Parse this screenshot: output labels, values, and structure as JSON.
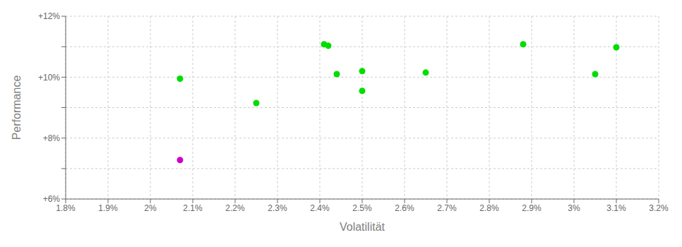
{
  "chart_data": {
    "type": "scatter",
    "xlabel": "Volatilität",
    "ylabel": "Performance",
    "xlim": [
      0.018,
      0.032
    ],
    "ylim": [
      0.06,
      0.12
    ],
    "xticks": [
      {
        "value": 0.018,
        "label": "1.8%"
      },
      {
        "value": 0.019,
        "label": "1.9%"
      },
      {
        "value": 0.02,
        "label": "2%"
      },
      {
        "value": 0.021,
        "label": "2.1%"
      },
      {
        "value": 0.022,
        "label": "2.2%"
      },
      {
        "value": 0.023,
        "label": "2.3%"
      },
      {
        "value": 0.024,
        "label": "2.4%"
      },
      {
        "value": 0.025,
        "label": "2.5%"
      },
      {
        "value": 0.026,
        "label": "2.6%"
      },
      {
        "value": 0.027,
        "label": "2.7%"
      },
      {
        "value": 0.028,
        "label": "2.8%"
      },
      {
        "value": 0.029,
        "label": "2.9%"
      },
      {
        "value": 0.03,
        "label": "3%"
      },
      {
        "value": 0.031,
        "label": "3.1%"
      },
      {
        "value": 0.032,
        "label": "3.2%"
      }
    ],
    "yticks": [
      {
        "value": 0.06,
        "label": "+6%"
      },
      {
        "value": 0.07,
        "label": ""
      },
      {
        "value": 0.08,
        "label": "+8%"
      },
      {
        "value": 0.09,
        "label": ""
      },
      {
        "value": 0.1,
        "label": "+10%"
      },
      {
        "value": 0.11,
        "label": ""
      },
      {
        "value": 0.12,
        "label": "+12%"
      }
    ],
    "grid": true,
    "series": [
      {
        "color": "#00dd00",
        "x": [
          0.0207,
          0.0225,
          0.0241,
          0.0242,
          0.0244,
          0.025,
          0.025,
          0.0265,
          0.0288,
          0.0305,
          0.031
        ],
        "values": [
          0.0995,
          0.0915,
          0.1108,
          0.1103,
          0.101,
          0.102,
          0.0955,
          0.1015,
          0.1108,
          0.101,
          0.1098
        ]
      },
      {
        "color": "#cc00cc",
        "x": [
          0.0207
        ],
        "values": [
          0.0728
        ]
      }
    ]
  }
}
